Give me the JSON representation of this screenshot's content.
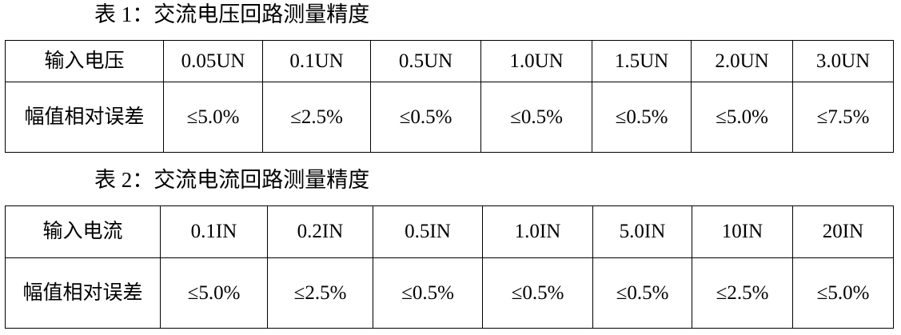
{
  "tables": [
    {
      "caption": "表 1：交流电压回路测量精度",
      "header_label": "输入电压",
      "columns": [
        "0.05UN",
        "0.1UN",
        "0.5UN",
        "1.0UN",
        "1.5UN",
        "2.0UN",
        "3.0UN"
      ],
      "row_label": "幅值相对误差",
      "values": [
        "≤5.0%",
        "≤2.5%",
        "≤0.5%",
        "≤0.5%",
        "≤0.5%",
        "≤5.0%",
        "≤7.5%"
      ]
    },
    {
      "caption": "表 2：交流电流回路测量精度",
      "header_label": "输入电流",
      "columns": [
        "0.1IN",
        "0.2IN",
        "0.5IN",
        "1.0IN",
        "5.0IN",
        "10IN",
        "20IN"
      ],
      "row_label": "幅值相对误差",
      "values": [
        "≤5.0%",
        "≤2.5%",
        "≤0.5%",
        "≤0.5%",
        "≤0.5%",
        "≤2.5%",
        "≤5.0%"
      ]
    }
  ]
}
